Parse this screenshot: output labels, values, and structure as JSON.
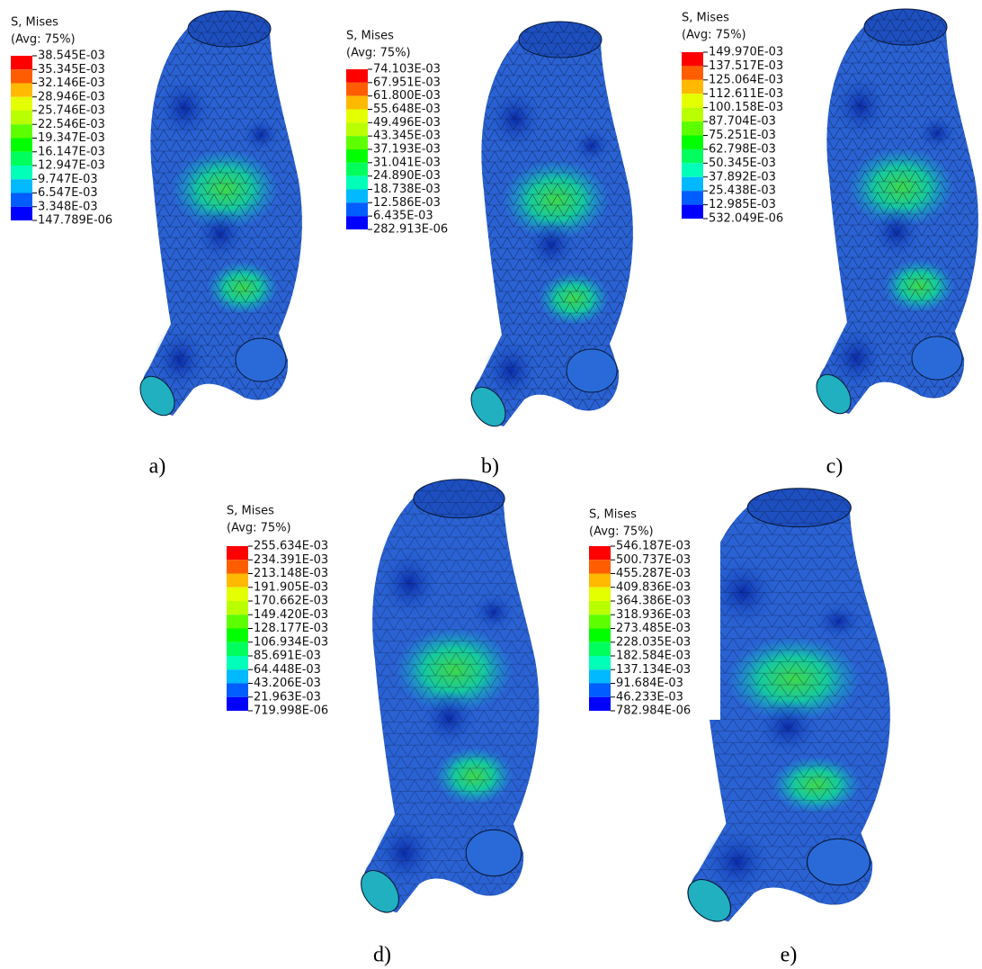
{
  "panels": [
    {
      "title": "S, Mises",
      "subtitle": "(Avg: 75%)",
      "labels": [
        "38.545E-03",
        "35.345E-03",
        "32.146E-03",
        "28.946E-03",
        "25.746E-03",
        "22.546E-03",
        "19.347E-03",
        "16.147E-03",
        "12.947E-03",
        "9.747E-03",
        "6.547E-03",
        "3.348E-03",
        "147.789E-06"
      ],
      "caption": "a)"
    },
    {
      "title": "S, Mises",
      "subtitle": "(Avg: 75%)",
      "labels": [
        "74.103E-03",
        "67.951E-03",
        "61.800E-03",
        "55.648E-03",
        "49.496E-03",
        "43.345E-03",
        "37.193E-03",
        "31.041E-03",
        "24.890E-03",
        "18.738E-03",
        "12.586E-03",
        "6.435E-03",
        "282.913E-06"
      ],
      "caption": "b)"
    },
    {
      "title": "S, Mises",
      "subtitle": "(Avg: 75%)",
      "labels": [
        "149.970E-03",
        "137.517E-03",
        "125.064E-03",
        "112.611E-03",
        "100.158E-03",
        "87.704E-03",
        "75.251E-03",
        "62.798E-03",
        "50.345E-03",
        "37.892E-03",
        "25.438E-03",
        "12.985E-03",
        "532.049E-06"
      ],
      "caption": "c)"
    },
    {
      "title": "S, Mises",
      "subtitle": "(Avg: 75%)",
      "labels": [
        "255.634E-03",
        "234.391E-03",
        "213.148E-03",
        "191.905E-03",
        "170.662E-03",
        "149.420E-03",
        "128.177E-03",
        "106.934E-03",
        "85.691E-03",
        "64.448E-03",
        "43.206E-03",
        "21.963E-03",
        "719.998E-06"
      ],
      "caption": "d)"
    },
    {
      "title": "S, Mises",
      "subtitle": "(Avg: 75%)",
      "labels": [
        "546.187E-03",
        "500.737E-03",
        "455.287E-03",
        "409.836E-03",
        "364.386E-03",
        "318.936E-03",
        "273.485E-03",
        "228.035E-03",
        "182.584E-03",
        "137.134E-03",
        "91.684E-03",
        "46.233E-03",
        "782.984E-06"
      ],
      "caption": "e)"
    }
  ]
}
